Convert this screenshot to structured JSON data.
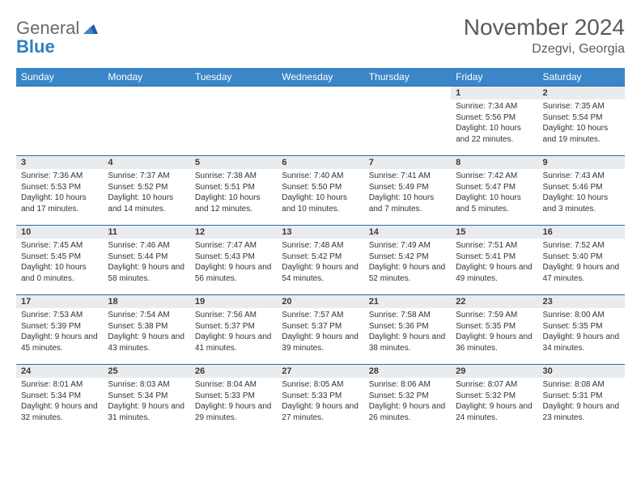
{
  "logo": {
    "word1": "General",
    "word2": "Blue"
  },
  "title": "November 2024",
  "location": "Dzegvi, Georgia",
  "colors": {
    "header_bg": "#3a86c8",
    "header_text": "#ffffff",
    "daynum_bg": "#e9ecef",
    "row_border": "#2f6aa0",
    "logo_gray": "#6a6a6a",
    "logo_blue": "#2f7fbf"
  },
  "weekdays": [
    "Sunday",
    "Monday",
    "Tuesday",
    "Wednesday",
    "Thursday",
    "Friday",
    "Saturday"
  ],
  "weeks": [
    [
      {
        "n": "",
        "sr": "",
        "ss": "",
        "dl": ""
      },
      {
        "n": "",
        "sr": "",
        "ss": "",
        "dl": ""
      },
      {
        "n": "",
        "sr": "",
        "ss": "",
        "dl": ""
      },
      {
        "n": "",
        "sr": "",
        "ss": "",
        "dl": ""
      },
      {
        "n": "",
        "sr": "",
        "ss": "",
        "dl": ""
      },
      {
        "n": "1",
        "sr": "Sunrise: 7:34 AM",
        "ss": "Sunset: 5:56 PM",
        "dl": "Daylight: 10 hours and 22 minutes."
      },
      {
        "n": "2",
        "sr": "Sunrise: 7:35 AM",
        "ss": "Sunset: 5:54 PM",
        "dl": "Daylight: 10 hours and 19 minutes."
      }
    ],
    [
      {
        "n": "3",
        "sr": "Sunrise: 7:36 AM",
        "ss": "Sunset: 5:53 PM",
        "dl": "Daylight: 10 hours and 17 minutes."
      },
      {
        "n": "4",
        "sr": "Sunrise: 7:37 AM",
        "ss": "Sunset: 5:52 PM",
        "dl": "Daylight: 10 hours and 14 minutes."
      },
      {
        "n": "5",
        "sr": "Sunrise: 7:38 AM",
        "ss": "Sunset: 5:51 PM",
        "dl": "Daylight: 10 hours and 12 minutes."
      },
      {
        "n": "6",
        "sr": "Sunrise: 7:40 AM",
        "ss": "Sunset: 5:50 PM",
        "dl": "Daylight: 10 hours and 10 minutes."
      },
      {
        "n": "7",
        "sr": "Sunrise: 7:41 AM",
        "ss": "Sunset: 5:49 PM",
        "dl": "Daylight: 10 hours and 7 minutes."
      },
      {
        "n": "8",
        "sr": "Sunrise: 7:42 AM",
        "ss": "Sunset: 5:47 PM",
        "dl": "Daylight: 10 hours and 5 minutes."
      },
      {
        "n": "9",
        "sr": "Sunrise: 7:43 AM",
        "ss": "Sunset: 5:46 PM",
        "dl": "Daylight: 10 hours and 3 minutes."
      }
    ],
    [
      {
        "n": "10",
        "sr": "Sunrise: 7:45 AM",
        "ss": "Sunset: 5:45 PM",
        "dl": "Daylight: 10 hours and 0 minutes."
      },
      {
        "n": "11",
        "sr": "Sunrise: 7:46 AM",
        "ss": "Sunset: 5:44 PM",
        "dl": "Daylight: 9 hours and 58 minutes."
      },
      {
        "n": "12",
        "sr": "Sunrise: 7:47 AM",
        "ss": "Sunset: 5:43 PM",
        "dl": "Daylight: 9 hours and 56 minutes."
      },
      {
        "n": "13",
        "sr": "Sunrise: 7:48 AM",
        "ss": "Sunset: 5:42 PM",
        "dl": "Daylight: 9 hours and 54 minutes."
      },
      {
        "n": "14",
        "sr": "Sunrise: 7:49 AM",
        "ss": "Sunset: 5:42 PM",
        "dl": "Daylight: 9 hours and 52 minutes."
      },
      {
        "n": "15",
        "sr": "Sunrise: 7:51 AM",
        "ss": "Sunset: 5:41 PM",
        "dl": "Daylight: 9 hours and 49 minutes."
      },
      {
        "n": "16",
        "sr": "Sunrise: 7:52 AM",
        "ss": "Sunset: 5:40 PM",
        "dl": "Daylight: 9 hours and 47 minutes."
      }
    ],
    [
      {
        "n": "17",
        "sr": "Sunrise: 7:53 AM",
        "ss": "Sunset: 5:39 PM",
        "dl": "Daylight: 9 hours and 45 minutes."
      },
      {
        "n": "18",
        "sr": "Sunrise: 7:54 AM",
        "ss": "Sunset: 5:38 PM",
        "dl": "Daylight: 9 hours and 43 minutes."
      },
      {
        "n": "19",
        "sr": "Sunrise: 7:56 AM",
        "ss": "Sunset: 5:37 PM",
        "dl": "Daylight: 9 hours and 41 minutes."
      },
      {
        "n": "20",
        "sr": "Sunrise: 7:57 AM",
        "ss": "Sunset: 5:37 PM",
        "dl": "Daylight: 9 hours and 39 minutes."
      },
      {
        "n": "21",
        "sr": "Sunrise: 7:58 AM",
        "ss": "Sunset: 5:36 PM",
        "dl": "Daylight: 9 hours and 38 minutes."
      },
      {
        "n": "22",
        "sr": "Sunrise: 7:59 AM",
        "ss": "Sunset: 5:35 PM",
        "dl": "Daylight: 9 hours and 36 minutes."
      },
      {
        "n": "23",
        "sr": "Sunrise: 8:00 AM",
        "ss": "Sunset: 5:35 PM",
        "dl": "Daylight: 9 hours and 34 minutes."
      }
    ],
    [
      {
        "n": "24",
        "sr": "Sunrise: 8:01 AM",
        "ss": "Sunset: 5:34 PM",
        "dl": "Daylight: 9 hours and 32 minutes."
      },
      {
        "n": "25",
        "sr": "Sunrise: 8:03 AM",
        "ss": "Sunset: 5:34 PM",
        "dl": "Daylight: 9 hours and 31 minutes."
      },
      {
        "n": "26",
        "sr": "Sunrise: 8:04 AM",
        "ss": "Sunset: 5:33 PM",
        "dl": "Daylight: 9 hours and 29 minutes."
      },
      {
        "n": "27",
        "sr": "Sunrise: 8:05 AM",
        "ss": "Sunset: 5:33 PM",
        "dl": "Daylight: 9 hours and 27 minutes."
      },
      {
        "n": "28",
        "sr": "Sunrise: 8:06 AM",
        "ss": "Sunset: 5:32 PM",
        "dl": "Daylight: 9 hours and 26 minutes."
      },
      {
        "n": "29",
        "sr": "Sunrise: 8:07 AM",
        "ss": "Sunset: 5:32 PM",
        "dl": "Daylight: 9 hours and 24 minutes."
      },
      {
        "n": "30",
        "sr": "Sunrise: 8:08 AM",
        "ss": "Sunset: 5:31 PM",
        "dl": "Daylight: 9 hours and 23 minutes."
      }
    ]
  ]
}
